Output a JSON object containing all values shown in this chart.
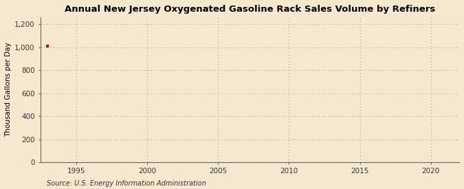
{
  "title": "Annual New Jersey Oxygenated Gasoline Rack Sales Volume by Refiners",
  "ylabel": "Thousand Gallons per Day",
  "source": "Source: U.S. Energy Information Administration",
  "background_color": "#f5e8ce",
  "plot_bg_color": "#f5e8ce",
  "data_x": [
    1993
  ],
  "data_y": [
    1008
  ],
  "marker_color": "#cc0000",
  "marker_size": 3.5,
  "xlim": [
    1992.5,
    2022
  ],
  "ylim": [
    0,
    1260
  ],
  "yticks": [
    0,
    200,
    400,
    600,
    800,
    1000,
    1200
  ],
  "ytick_labels": [
    "0",
    "200",
    "400",
    "600",
    "800",
    "1,000",
    "1,200"
  ],
  "xticks": [
    1995,
    2000,
    2005,
    2010,
    2015,
    2020
  ],
  "grid_color": "#999999",
  "grid_linestyle": ":",
  "title_fontsize": 9.5,
  "label_fontsize": 7.5,
  "tick_fontsize": 7.5,
  "source_fontsize": 7
}
